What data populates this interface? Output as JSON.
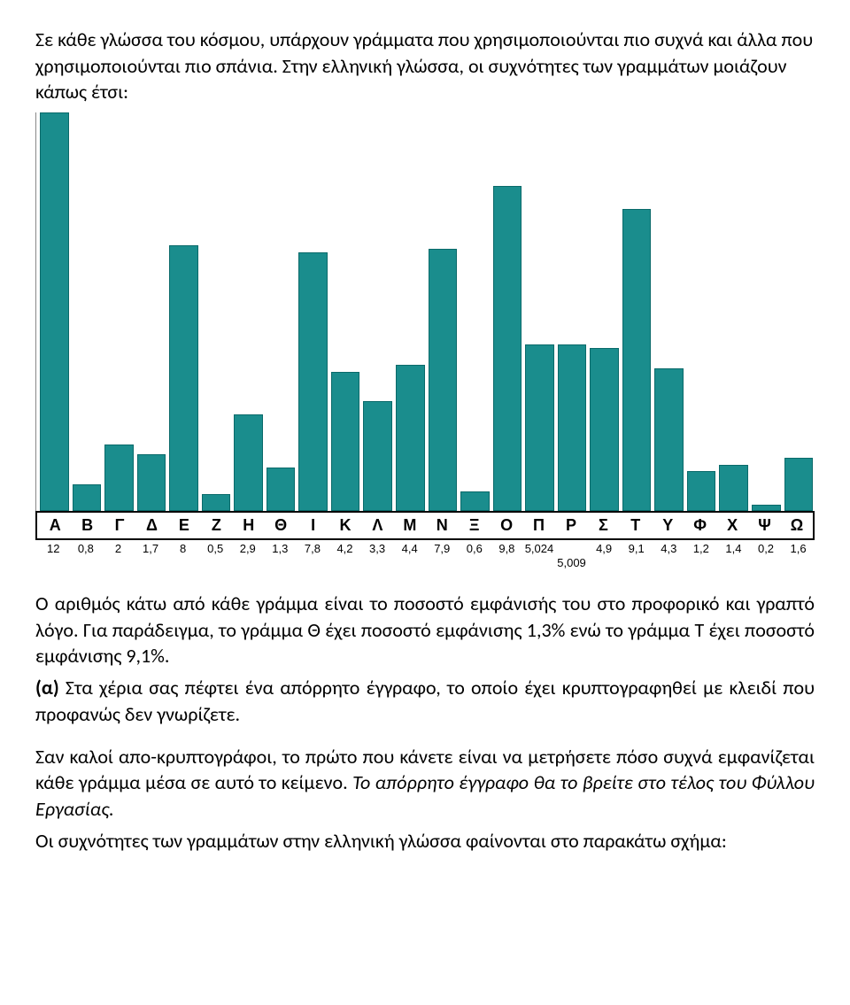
{
  "text": {
    "p1": "Σε κάθε γλώσσα του κόσμου, υπάρχουν γράμματα που χρησιμοποιούνται πιο συχνά και άλλα που χρησιμοποιούνται πιο σπάνια. Στην ελληνική γλώσσα, οι συχνότητες των γραμμάτων μοιάζουν κάπως έτσι:",
    "p2": "Ο αριθμός κάτω από κάθε γράμμα είναι το ποσοστό εμφάνισής του στο προφορικό και γραπτό λόγο. Για παράδειγμα, το γράμμα Θ έχει ποσοστό εμφάνισης 1,3% ενώ το γράμμα Τ έχει ποσοστό εμφάνισης 9,1%.",
    "p3a": "(α)",
    "p3b": " Στα χέρια σας πέφτει ένα απόρρητο έγγραφο, το οποίο έχει κρυπτογραφηθεί με κλειδί που προφανώς δεν γνωρίζετε.",
    "p4a": "Σαν καλοί απο-κρυπτογράφοι, το πρώτο που κάνετε είναι να μετρήσετε πόσο συχνά εμφανίζεται κάθε γράμμα μέσα σε αυτό το κείμενο. ",
    "p4b": "Το απόρρητο έγγραφο θα το βρείτε στο τέλος του Φύλλου Εργασίας.",
    "p5": "Οι συχνότητες των γραμμάτων στην ελληνική γλώσσα φαίνονται στο παρακάτω σχήμα:"
  },
  "chart": {
    "type": "bar",
    "bar_color": "#1a8d8d",
    "bar_border": "#0a6a6a",
    "background": "#ffffff",
    "max_value": 12,
    "letters": [
      "Α",
      "Β",
      "Γ",
      "Δ",
      "Ε",
      "Ζ",
      "Η",
      "Θ",
      "Ι",
      "Κ",
      "Λ",
      "Μ",
      "Ν",
      "Ξ",
      "Ο",
      "Π",
      "Ρ",
      "Σ",
      "Τ",
      "Υ",
      "Φ",
      "Χ",
      "Ψ",
      "Ω"
    ],
    "values": [
      12,
      0.8,
      2,
      1.7,
      8,
      0.5,
      2.9,
      1.3,
      7.8,
      4.2,
      3.3,
      4.4,
      7.9,
      0.6,
      9.8,
      5.024,
      5.009,
      4.9,
      9.1,
      4.3,
      1.2,
      1.4,
      0.2,
      1.6
    ],
    "value_labels": [
      "12",
      "0,8",
      "2",
      "1,7",
      "8",
      "0,5",
      "2,9",
      "1,3",
      "7,8",
      "4,2",
      "3,3",
      "4,4",
      "7,9",
      "0,6",
      "9,8",
      "5,024",
      "5,009",
      "4,9",
      "9,1",
      "4,3",
      "1,2",
      "1,4",
      "0,2",
      "1,6"
    ],
    "sub_value_index": 16,
    "label_fontsize": 18,
    "value_fontsize": 13
  }
}
